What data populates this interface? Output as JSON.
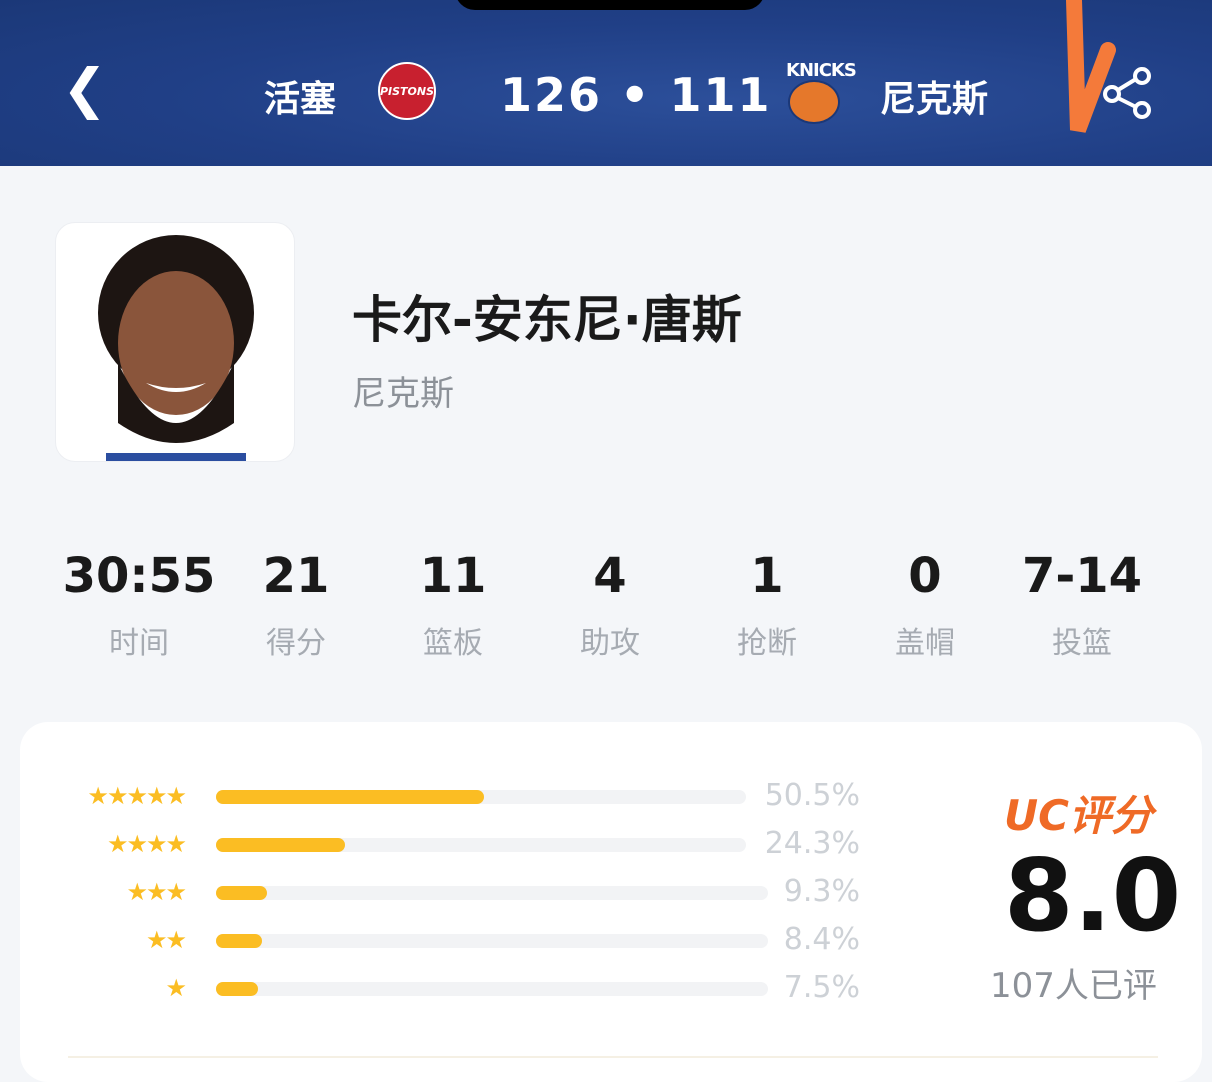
{
  "header": {
    "back_icon": "chevron-left-icon",
    "home_team": "活塞",
    "home_logo_text": "PISTONS",
    "score": "126 • 111",
    "away_logo_text": "KNICKS",
    "away_team": "尼克斯",
    "share_icon": "share-icon"
  },
  "player": {
    "name": "卡尔-安东尼·唐斯",
    "team": "尼克斯"
  },
  "stats": [
    {
      "value": "30:55",
      "label": "时间"
    },
    {
      "value": "21",
      "label": "得分"
    },
    {
      "value": "11",
      "label": "篮板"
    },
    {
      "value": "4",
      "label": "助攻"
    },
    {
      "value": "1",
      "label": "抢断"
    },
    {
      "value": "0",
      "label": "盖帽"
    },
    {
      "value": "7-14",
      "label": "投篮"
    }
  ],
  "rating": {
    "title": "UC评分",
    "score": "8.0",
    "count": "107人已评",
    "accent": "#ef6a26",
    "bar_color": "#fbbd23",
    "distribution": [
      {
        "stars": 5,
        "percent": 50.5,
        "label": "50.5%"
      },
      {
        "stars": 4,
        "percent": 24.3,
        "label": "24.3%"
      },
      {
        "stars": 3,
        "percent": 9.3,
        "label": "9.3%"
      },
      {
        "stars": 2,
        "percent": 8.4,
        "label": "8.4%"
      },
      {
        "stars": 1,
        "percent": 7.5,
        "label": "7.5%"
      }
    ]
  }
}
